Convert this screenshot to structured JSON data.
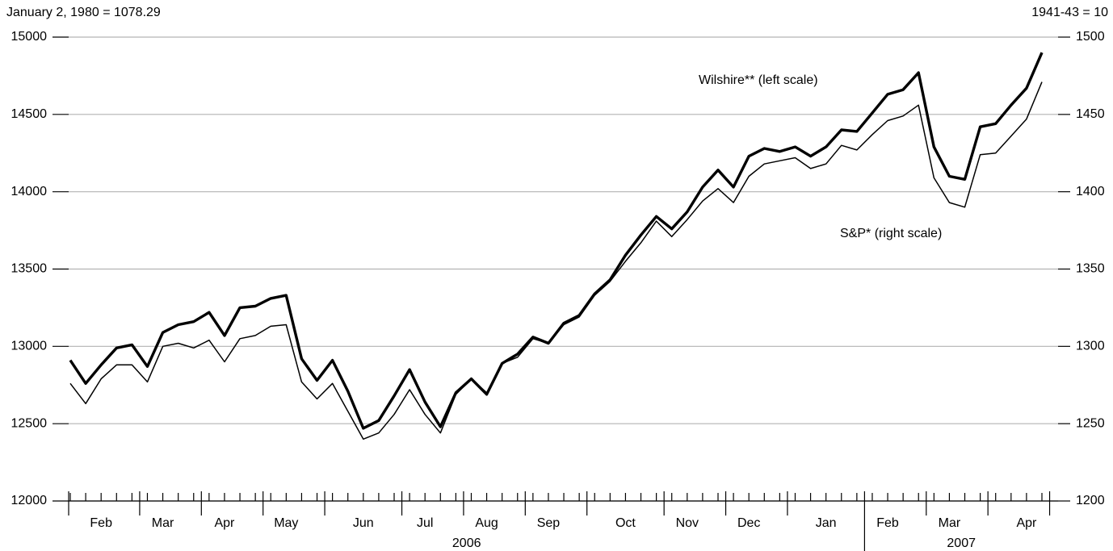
{
  "chart_data": {
    "type": "line",
    "y_label": "January 2, 1980 = 1078.29",
    "y2_label": "1941-43 = 10",
    "x_group_labels": [
      "2006",
      "2007"
    ],
    "categories": [
      null,
      null,
      "Feb",
      null,
      null,
      null,
      "Mar",
      null,
      null,
      null,
      "Apr",
      null,
      null,
      null,
      "May",
      null,
      null,
      null,
      null,
      "Jun",
      null,
      null,
      null,
      "Jul",
      null,
      null,
      null,
      "Aug",
      null,
      null,
      null,
      "Sep",
      null,
      null,
      null,
      null,
      "Oct",
      null,
      null,
      null,
      "Nov",
      null,
      null,
      null,
      "Dec",
      null,
      null,
      null,
      null,
      "Jan",
      null,
      null,
      null,
      "Feb",
      null,
      null,
      null,
      "Mar",
      null,
      null,
      null,
      null,
      "Apr",
      null
    ],
    "series": [
      {
        "name": "Wilshire** (left scale)",
        "color": "#000000",
        "axis": "y",
        "values": [
          12910,
          12760,
          12880,
          12990,
          13010,
          12870,
          13090,
          13140,
          13160,
          13220,
          13070,
          13250,
          13260,
          13310,
          13330,
          12920,
          12780,
          12910,
          12710,
          12470,
          12520,
          12680,
          12850,
          12640,
          12480,
          12700,
          12790,
          12690,
          12890,
          12950,
          13060,
          13020,
          13150,
          13200,
          13340,
          13430,
          13590,
          13720,
          13840,
          13760,
          13870,
          14030,
          14140,
          14030,
          14230,
          14280,
          14260,
          14290,
          14230,
          14290,
          14400,
          14390,
          14510,
          14630,
          14660,
          14770,
          14290,
          14100,
          14080,
          14420,
          14440,
          14560,
          14670,
          14900
        ]
      },
      {
        "name": "S&P* (right scale)",
        "color": "#000000",
        "axis": "y2",
        "values": [
          1276,
          1263,
          1279,
          1288,
          1288,
          1277,
          1300,
          1302,
          1299,
          1304,
          1290,
          1305,
          1307,
          1313,
          1314,
          1277,
          1266,
          1276,
          1258,
          1240,
          1244,
          1256,
          1272,
          1256,
          1244,
          1269,
          1279,
          1270,
          1289,
          1293,
          1305,
          1302,
          1314,
          1319,
          1333,
          1342,
          1355,
          1367,
          1381,
          1371,
          1382,
          1394,
          1402,
          1393,
          1410,
          1418,
          1420,
          1422,
          1415,
          1418,
          1430,
          1427,
          1437,
          1446,
          1449,
          1456,
          1409,
          1393,
          1390,
          1424,
          1425,
          1436,
          1447,
          1471
        ]
      }
    ],
    "ylim": [
      12000,
      15000
    ],
    "yticks": [
      12000,
      12500,
      13000,
      13500,
      14000,
      14500,
      15000
    ],
    "y2lim": [
      1200,
      1500
    ],
    "y2ticks": [
      1200,
      1250,
      1300,
      1350,
      1400,
      1450,
      1500
    ],
    "grid": true
  }
}
